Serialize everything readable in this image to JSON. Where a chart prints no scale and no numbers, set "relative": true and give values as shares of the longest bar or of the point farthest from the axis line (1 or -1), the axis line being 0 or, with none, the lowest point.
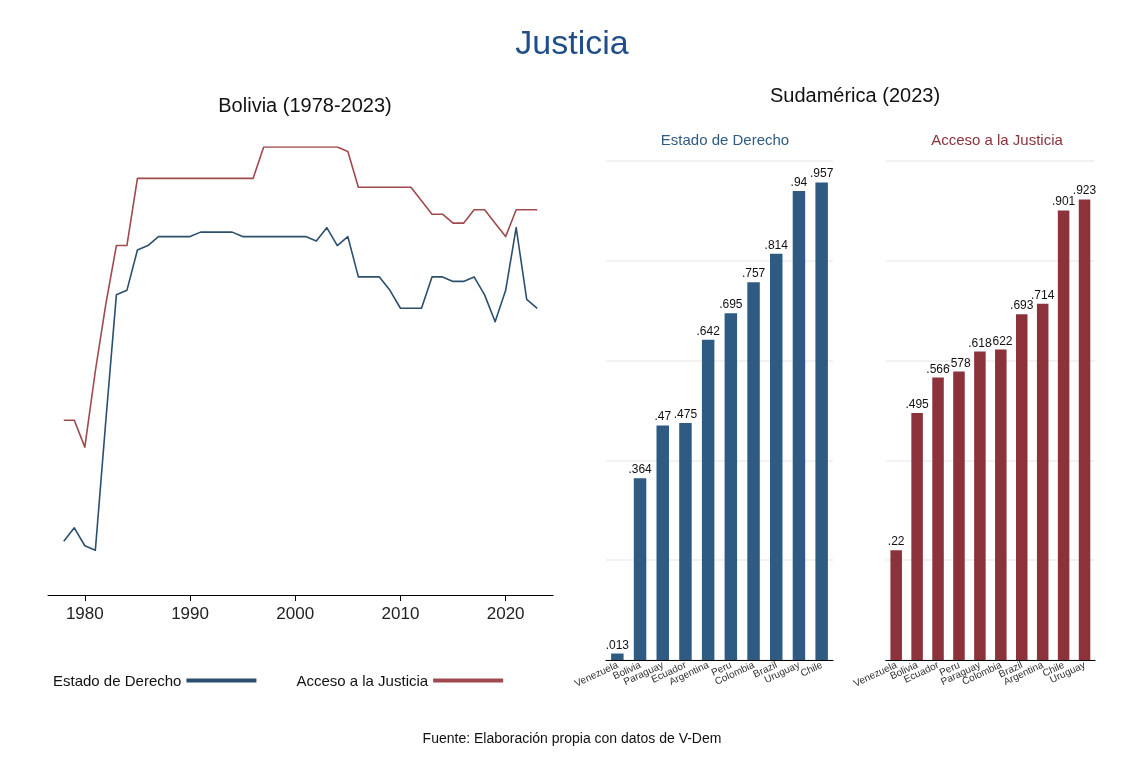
{
  "chart_data": [
    {
      "type": "line",
      "title": "Justicia",
      "subtitle": "Bolivia (1978-2023)",
      "relative": true,
      "legend": "bottom",
      "marker": "none",
      "line_style": "solid",
      "annotations": [
        "Fuente: Elaboración propia con datos de V-Dem"
      ],
      "xlim": [
        1976.5,
        2024.5
      ],
      "xticks": [
        1980,
        1990,
        2000,
        2010,
        2020
      ],
      "x": [
        1978,
        1979,
        1980,
        1981,
        1982,
        1983,
        1984,
        1985,
        1986,
        1987,
        1988,
        1989,
        1990,
        1991,
        1992,
        1993,
        1994,
        1995,
        1996,
        1997,
        1998,
        1999,
        2000,
        2001,
        2002,
        2003,
        2004,
        2005,
        2006,
        2007,
        2008,
        2009,
        2010,
        2011,
        2012,
        2013,
        2014,
        2015,
        2016,
        2017,
        2018,
        2019,
        2020,
        2021,
        2022,
        2023
      ],
      "series": [
        {
          "name": "Estado de Derecho",
          "color": "#2c4f6e",
          "values": [
            0.12,
            0.15,
            0.11,
            0.1,
            0.39,
            0.67,
            0.68,
            0.77,
            0.78,
            0.8,
            0.8,
            0.8,
            0.8,
            0.81,
            0.81,
            0.81,
            0.81,
            0.8,
            0.8,
            0.8,
            0.8,
            0.8,
            0.8,
            0.8,
            0.79,
            0.82,
            0.78,
            0.8,
            0.71,
            0.71,
            0.71,
            0.68,
            0.64,
            0.64,
            0.64,
            0.71,
            0.71,
            0.7,
            0.7,
            0.71,
            0.67,
            0.61,
            0.68,
            0.82,
            0.66,
            0.64
          ]
        },
        {
          "name": "Acceso a la Justicia",
          "color": "#a04a4e",
          "values": [
            0.39,
            0.39,
            0.33,
            0.5,
            0.65,
            0.78,
            0.78,
            0.93,
            0.93,
            0.93,
            0.93,
            0.93,
            0.93,
            0.93,
            0.93,
            0.93,
            0.93,
            0.93,
            0.93,
            1,
            1,
            1,
            1,
            1,
            1,
            1,
            1,
            0.99,
            0.91,
            0.91,
            0.91,
            0.91,
            0.91,
            0.91,
            0.88,
            0.85,
            0.85,
            0.83,
            0.83,
            0.86,
            0.86,
            0.83,
            0.8,
            0.86,
            0.86,
            0.86
          ]
        }
      ]
    },
    {
      "type": "bar",
      "title": "Sudamérica (2023)",
      "subtitle": "Estado de Derecho",
      "grid": "y",
      "ylim": [
        0,
        1
      ],
      "yticks": [
        {
          "value": 0,
          "label": null
        },
        {
          "value": 0.2,
          "label": null
        },
        {
          "value": 0.4,
          "label": null
        },
        {
          "value": 0.6,
          "label": null
        },
        {
          "value": 0.8,
          "label": null
        },
        {
          "value": 1,
          "label": null
        }
      ],
      "categories": [
        "Venezuela",
        "Bolivia",
        "Paraguay",
        "Ecuador",
        "Argentina",
        "Peru",
        "Colombia",
        "Brazil",
        "Uruguay",
        "Chile"
      ],
      "series": [
        {
          "color": "#2f5b82",
          "values": [
            0.013,
            0.364,
            0.47,
            0.475,
            0.642,
            0.695,
            0.757,
            0.814,
            0.94,
            0.957
          ],
          "value_labels": [
            ".013",
            ".364",
            ".47",
            ".475",
            ".642",
            ".695",
            ".757",
            ".814",
            ".94",
            ".957"
          ]
        }
      ]
    },
    {
      "type": "bar",
      "subtitle": "Acceso a la Justicia",
      "grid": "y",
      "ylim": [
        0,
        1
      ],
      "yticks": [
        {
          "value": 0,
          "label": null
        },
        {
          "value": 0.2,
          "label": null
        },
        {
          "value": 0.4,
          "label": null
        },
        {
          "value": 0.6,
          "label": null
        },
        {
          "value": 0.8,
          "label": null
        },
        {
          "value": 1,
          "label": null
        }
      ],
      "categories": [
        "Venezuela",
        "Bolivia",
        "Ecuador",
        "Peru",
        "Paraguay",
        "Colombia",
        "Brazil",
        "Argentina",
        "Chile",
        "Uruguay"
      ],
      "series": [
        {
          "color": "#8b323a",
          "values": [
            0.22,
            0.495,
            0.566,
            0.578,
            0.618,
            0.622,
            0.693,
            0.714,
            0.901,
            0.923
          ],
          "value_labels": [
            ".22",
            ".495",
            ".566",
            ".578",
            ".618",
            ".622",
            ".693",
            ".714",
            ".901",
            ".923"
          ]
        }
      ]
    }
  ]
}
